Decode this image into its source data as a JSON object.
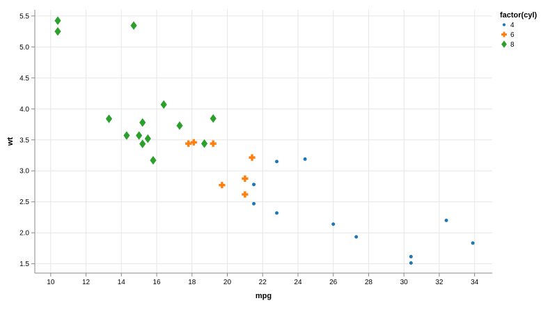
{
  "chart_data": {
    "type": "scatter",
    "xlabel": "mpg",
    "ylabel": "wt",
    "xlim": [
      9.1,
      35.0
    ],
    "ylim": [
      1.35,
      5.6
    ],
    "x_ticks": [
      10,
      12,
      14,
      16,
      18,
      20,
      22,
      24,
      26,
      28,
      30,
      32,
      34
    ],
    "y_ticks": [
      1.5,
      2.0,
      2.5,
      3.0,
      3.5,
      4.0,
      4.5,
      5.0,
      5.5
    ],
    "x_tick_labels": [
      "10",
      "12",
      "14",
      "16",
      "18",
      "20",
      "22",
      "24",
      "26",
      "28",
      "30",
      "32",
      "34"
    ],
    "y_tick_labels": [
      "1.5",
      "2.0",
      "2.5",
      "3.0",
      "3.5",
      "4.0",
      "4.5",
      "5.0",
      "5.5"
    ],
    "grid": true,
    "legend": {
      "title": "factor(cyl)",
      "placement": "right-top",
      "entries": [
        {
          "label": "4",
          "shape": "circle",
          "color": "#1f77b4"
        },
        {
          "label": "6",
          "shape": "cross",
          "color": "#ff7f0e"
        },
        {
          "label": "8",
          "shape": "diamond",
          "color": "#2ca02c"
        }
      ]
    },
    "series": [
      {
        "name": "4",
        "shape": "circle",
        "color": "#1f77b4",
        "points": [
          [
            22.8,
            3.15
          ],
          [
            24.4,
            3.19
          ],
          [
            21.5,
            2.78
          ],
          [
            21.5,
            2.47
          ],
          [
            22.8,
            2.32
          ],
          [
            26.0,
            2.14
          ],
          [
            27.3,
            1.935
          ],
          [
            32.4,
            2.2
          ],
          [
            30.4,
            1.615
          ],
          [
            30.4,
            1.513
          ],
          [
            33.9,
            1.835
          ]
        ]
      },
      {
        "name": "6",
        "shape": "cross",
        "color": "#ff7f0e",
        "points": [
          [
            17.8,
            3.44
          ],
          [
            18.1,
            3.46
          ],
          [
            19.2,
            3.44
          ],
          [
            21.4,
            3.215
          ],
          [
            21.0,
            2.875
          ],
          [
            19.7,
            2.77
          ],
          [
            21.0,
            2.62
          ]
        ]
      },
      {
        "name": "8",
        "shape": "diamond",
        "color": "#2ca02c",
        "points": [
          [
            10.4,
            5.424
          ],
          [
            10.4,
            5.25
          ],
          [
            14.7,
            5.345
          ],
          [
            16.4,
            4.07
          ],
          [
            19.2,
            3.845
          ],
          [
            13.3,
            3.84
          ],
          [
            17.3,
            3.73
          ],
          [
            15.2,
            3.78
          ],
          [
            14.3,
            3.57
          ],
          [
            15.0,
            3.57
          ],
          [
            15.5,
            3.52
          ],
          [
            15.2,
            3.435
          ],
          [
            18.7,
            3.44
          ],
          [
            15.8,
            3.17
          ]
        ]
      }
    ]
  }
}
